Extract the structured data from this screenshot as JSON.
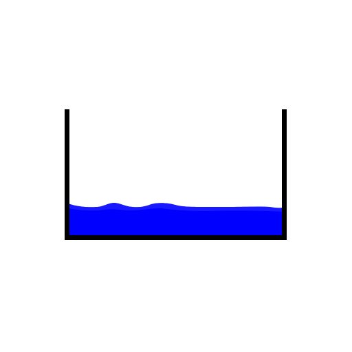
{
  "scene": {
    "background_color": "#ffffff",
    "container": {
      "shape": "open-top rectangular tank",
      "wall_color": "#000000"
    },
    "liquid": {
      "color": "#0000ff",
      "highlight_color": "#2a2aff",
      "fill_level": 0.22,
      "surface": "wavy"
    }
  }
}
